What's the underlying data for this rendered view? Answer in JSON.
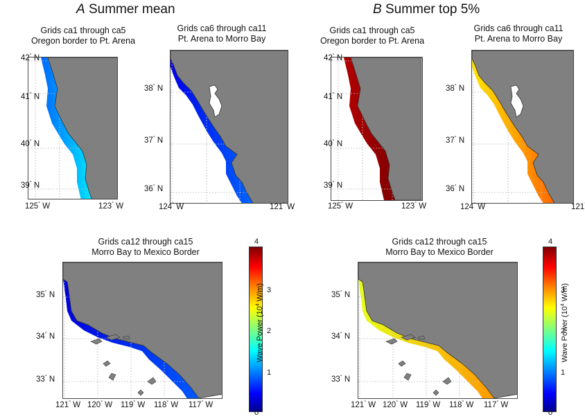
{
  "panels": [
    {
      "letter": "A",
      "title": "Summer mean",
      "scheme": "mean"
    },
    {
      "letter": "B",
      "title": "Summer top 5%",
      "scheme": "top"
    }
  ],
  "maps": {
    "north": {
      "title_1": "Grids ca1 through ca5",
      "title_2": "Oregon border to Pt. Arena",
      "lat_labels": [
        "42",
        "41",
        "40",
        "39"
      ],
      "lon_labels": [
        "125",
        "123"
      ]
    },
    "central": {
      "title_1": "Grids ca6 through ca11",
      "title_2": "Pt. Arena to Morro Bay",
      "lat_labels": [
        "38",
        "37",
        "36"
      ],
      "lon_labels": [
        "124",
        "121"
      ]
    },
    "south": {
      "title_1": "Grids ca12 through ca15",
      "title_2": "Morro Bay to Mexico Border",
      "lat_labels": [
        "35",
        "34",
        "33"
      ],
      "lon_labels": [
        "121",
        "120",
        "119",
        "118",
        "117"
      ]
    }
  },
  "units": {
    "deg": "°",
    "north": "N",
    "west": "W"
  },
  "colorbar": {
    "label_prefix": "Wave Power (10",
    "label_exp": "4",
    "label_suffix": " W/m)",
    "ticks": [
      "4",
      "3",
      "2",
      "1",
      "0"
    ],
    "range": [
      0,
      4
    ],
    "colormap": "jet",
    "colors": [
      "#00008f",
      "#0000ff",
      "#0080ff",
      "#00ffff",
      "#80ff80",
      "#ffff00",
      "#ff8000",
      "#ff0000",
      "#800000"
    ]
  },
  "style": {
    "land": "#808080",
    "grid": "#bdbdbd"
  },
  "wave_levels": {
    "mean": {
      "north": 0.9,
      "central": 0.4,
      "south": 0.35
    },
    "top": {
      "north": 3.8,
      "central": 2.6,
      "south": 2.4
    }
  }
}
